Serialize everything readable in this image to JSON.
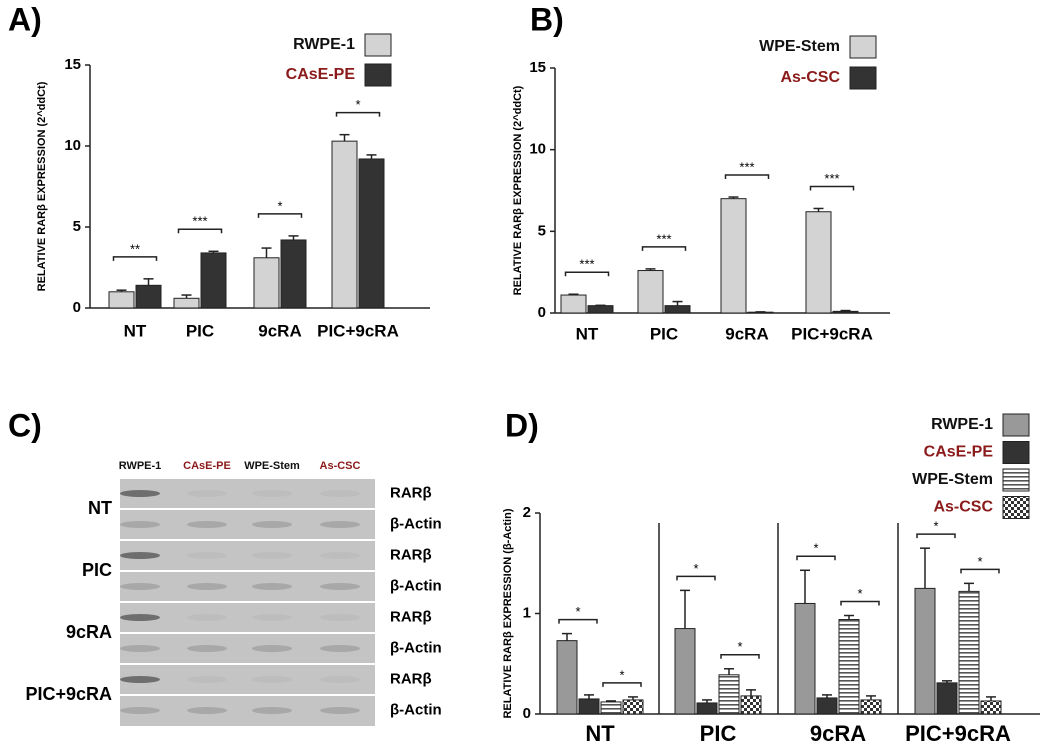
{
  "chart_data": [
    {
      "type": "bar",
      "panel_label": "A)",
      "ylabel": "RELATIVE RARβ EXPRESSION (2^ddCt)",
      "categories": [
        "NT",
        "PIC",
        "9cRA",
        "PIC+9cRA"
      ],
      "series": [
        {
          "name": "RWPE-1",
          "color": "#d3d3d3",
          "label_color": "#111111",
          "values": [
            1.0,
            0.6,
            3.1,
            10.3
          ],
          "errors": [
            0.1,
            0.2,
            0.6,
            0.4
          ]
        },
        {
          "name": "CAsE-PE",
          "color": "#333333",
          "label_color": "#8b1a1a",
          "values": [
            1.4,
            3.4,
            4.2,
            9.2
          ],
          "errors": [
            0.4,
            0.1,
            0.25,
            0.25
          ]
        }
      ],
      "significance": [
        [
          "**",
          "***",
          "*",
          "*"
        ]
      ],
      "ylim": [
        0,
        15
      ],
      "yticks": [
        0,
        5,
        10,
        15
      ]
    },
    {
      "type": "bar",
      "panel_label": "B)",
      "ylabel": "RELATIVE RARβ EXPRESSION (2^ddCt)",
      "categories": [
        "NT",
        "PIC",
        "9cRA",
        "PIC+9cRA"
      ],
      "series": [
        {
          "name": "WPE-Stem",
          "color": "#d3d3d3",
          "label_color": "#111111",
          "values": [
            1.1,
            2.6,
            7.0,
            6.2
          ],
          "errors": [
            0.05,
            0.1,
            0.1,
            0.2
          ]
        },
        {
          "name": "As-CSC",
          "color": "#333333",
          "label_color": "#8b1a1a",
          "values": [
            0.45,
            0.45,
            0.05,
            0.1
          ],
          "errors": [
            0.02,
            0.25,
            0.02,
            0.05
          ]
        }
      ],
      "significance": [
        [
          "***",
          "***",
          "***",
          "***"
        ]
      ],
      "ylim": [
        0,
        15
      ],
      "yticks": [
        0,
        5,
        10,
        15
      ]
    },
    {
      "type": "bar",
      "panel_label": "D)",
      "ylabel": "RELATIVE RARβ EXPRESSION (β-Actin)",
      "categories": [
        "NT",
        "PIC",
        "9cRA",
        "PIC+9cRA"
      ],
      "series": [
        {
          "name": "RWPE-1",
          "color": "#999999",
          "label_color": "#111111",
          "pattern": "solid",
          "values": [
            0.73,
            0.85,
            1.1,
            1.25
          ],
          "errors": [
            0.07,
            0.38,
            0.33,
            0.4
          ]
        },
        {
          "name": "CAsE-PE",
          "color": "#333333",
          "label_color": "#8b1a1a",
          "pattern": "solid",
          "values": [
            0.15,
            0.11,
            0.16,
            0.31
          ],
          "errors": [
            0.04,
            0.03,
            0.03,
            0.02
          ]
        },
        {
          "name": "WPE-Stem",
          "color": "#888888",
          "label_color": "#111111",
          "pattern": "stripes",
          "values": [
            0.12,
            0.39,
            0.94,
            1.22
          ],
          "errors": [
            0.01,
            0.06,
            0.04,
            0.08
          ]
        },
        {
          "name": "As-CSC",
          "color": "#555555",
          "label_color": "#8b1a1a",
          "pattern": "checker",
          "values": [
            0.14,
            0.18,
            0.14,
            0.13
          ],
          "errors": [
            0.03,
            0.06,
            0.04,
            0.04
          ]
        }
      ],
      "significance": [
        [
          "*",
          "*",
          "*",
          "*"
        ],
        [
          "*",
          "*",
          "*",
          "*"
        ]
      ],
      "ylim": [
        0,
        2
      ],
      "yticks": [
        0,
        1,
        2
      ]
    }
  ],
  "blot": {
    "panel_label": "C)",
    "columns": [
      "RWPE-1",
      "CAsE-PE",
      "WPE-Stem",
      "As-CSC"
    ],
    "rows": [
      {
        "label": "NT",
        "bands": [
          "RARβ",
          "β-Actin"
        ]
      },
      {
        "label": "PIC",
        "bands": [
          "RARβ",
          "β-Actin"
        ]
      },
      {
        "label": "9cRA",
        "bands": [
          "RARβ",
          "β-Actin"
        ]
      },
      {
        "label": "PIC+9cRA",
        "bands": [
          "RARβ",
          "β-Actin"
        ]
      }
    ]
  }
}
